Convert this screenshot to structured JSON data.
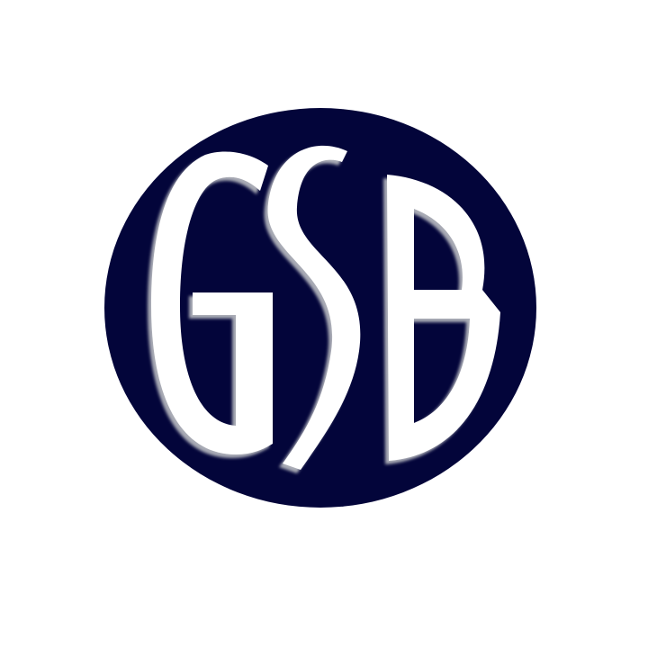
{
  "logo": {
    "monogram": "GSB",
    "emblem_color": "#03053a",
    "letter_color": "#ffffff",
    "shadow_color": "#a9abb5"
  }
}
